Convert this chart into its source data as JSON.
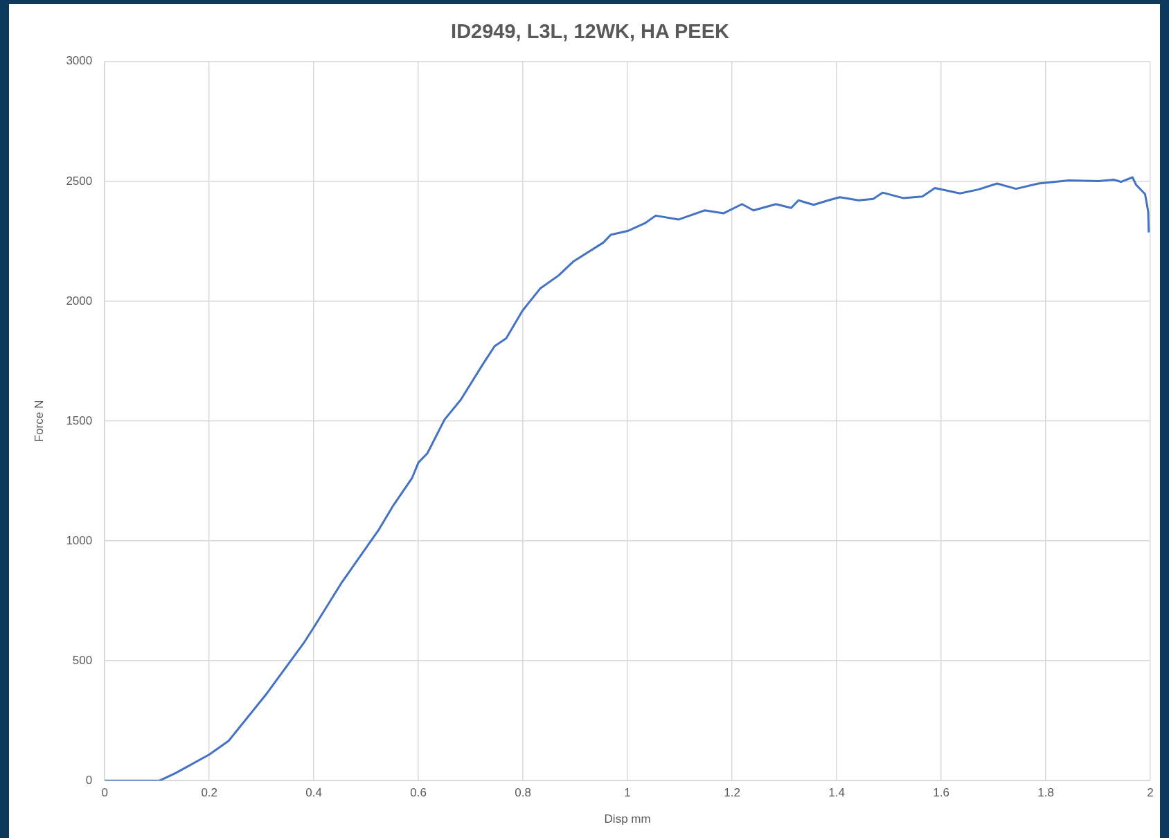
{
  "chart_data": {
    "type": "line",
    "title": "ID2949, L3L, 12WK, HA PEEK",
    "xlabel": "Disp mm",
    "ylabel": "Force N",
    "xlim": [
      0,
      2
    ],
    "xticks": [
      0,
      0.2,
      0.4,
      0.6,
      0.8,
      1,
      1.2,
      1.4,
      1.6,
      1.8,
      2
    ],
    "ylim": [
      0,
      3000
    ],
    "yticks": [
      0,
      500,
      1000,
      1500,
      2000,
      2500,
      3000
    ],
    "grid": true,
    "legend": false,
    "marker": "none",
    "line_style": "solid",
    "series": [
      {
        "color": "#4472c4",
        "x": [
          0,
          0.105,
          0.136,
          0.2,
          0.237,
          0.308,
          0.38,
          0.399,
          0.452,
          0.524,
          0.552,
          0.588,
          0.6,
          0.617,
          0.65,
          0.681,
          0.725,
          0.746,
          0.768,
          0.799,
          0.833,
          0.868,
          0.896,
          0.954,
          0.968,
          1.0,
          1.033,
          1.054,
          1.098,
          1.148,
          1.184,
          1.219,
          1.241,
          1.284,
          1.313,
          1.327,
          1.356,
          1.384,
          1.406,
          1.442,
          1.47,
          1.488,
          1.528,
          1.564,
          1.588,
          1.636,
          1.671,
          1.707,
          1.743,
          1.786,
          1.844,
          1.901,
          1.93,
          1.944,
          1.966,
          1.973,
          1.99,
          1.996,
          1.997
        ],
        "values": [
          0,
          0,
          32,
          109,
          166,
          358,
          572,
          636,
          822,
          1046,
          1148,
          1263,
          1327,
          1365,
          1506,
          1589,
          1743,
          1813,
          1845,
          1960,
          2053,
          2107,
          2165,
          2245,
          2277,
          2293,
          2325,
          2357,
          2341,
          2379,
          2367,
          2405,
          2379,
          2405,
          2389,
          2421,
          2402,
          2421,
          2434,
          2421,
          2427,
          2453,
          2430,
          2437,
          2472,
          2450,
          2466,
          2491,
          2469,
          2491,
          2504,
          2501,
          2507,
          2498,
          2517,
          2485,
          2447,
          2373,
          2287
        ]
      }
    ]
  }
}
